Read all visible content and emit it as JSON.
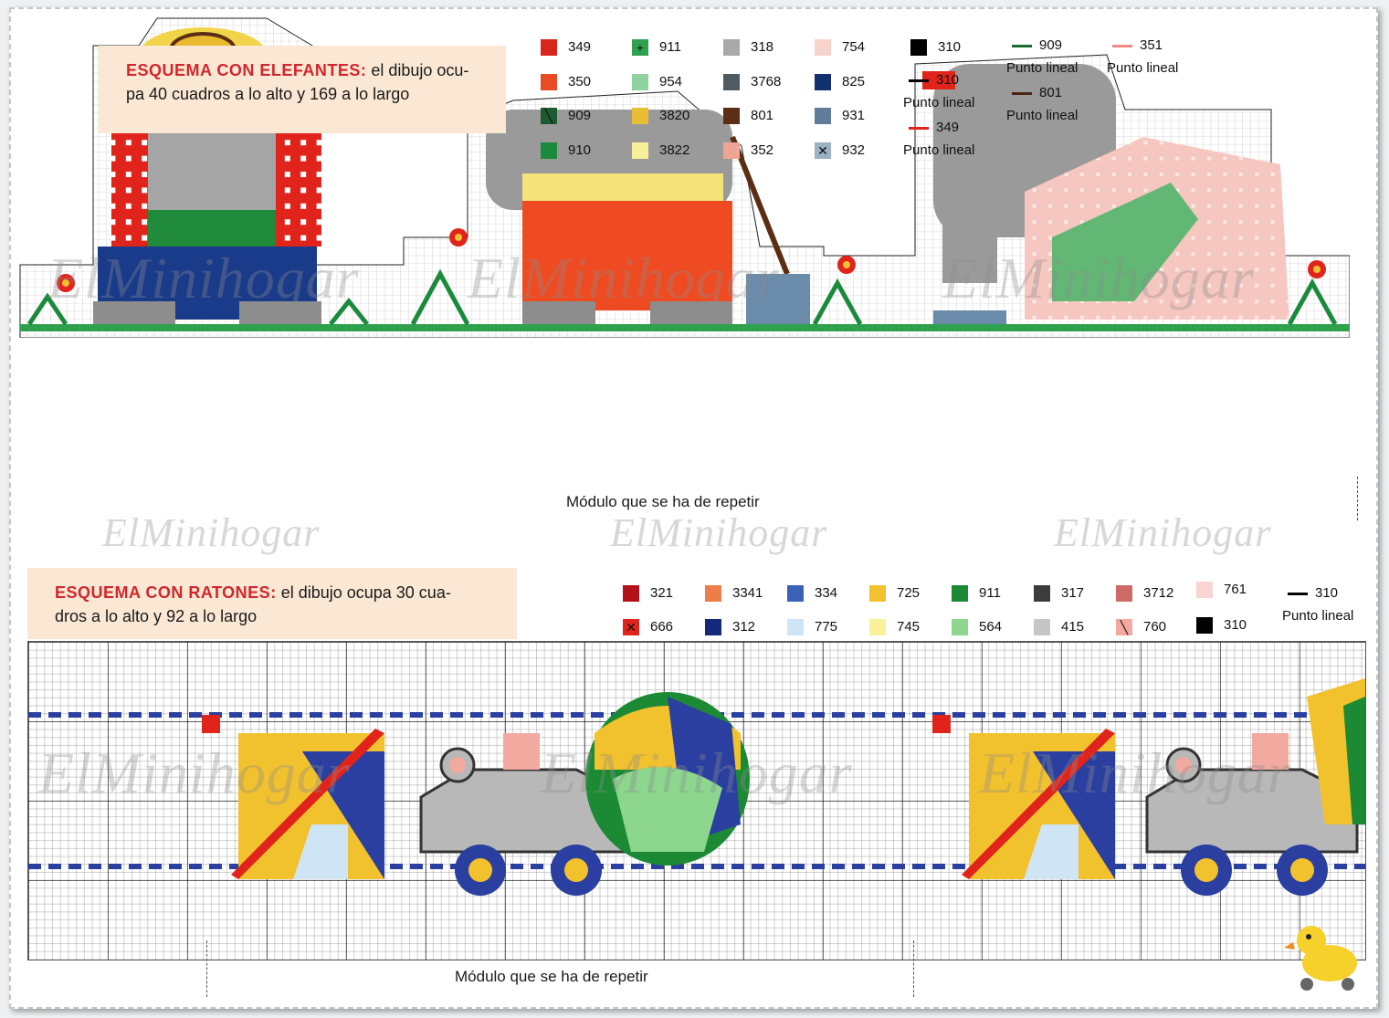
{
  "elephants": {
    "title_highlight": "ESQUEMA CON ELEFANTES:",
    "title_line1_rest": " el dibujo ocu-",
    "title_line2": "pa 40 cuadros a lo alto y 169 a lo largo",
    "legend": [
      {
        "code": "349",
        "color": "#d9261c"
      },
      {
        "code": "350",
        "color": "#e94b25"
      },
      {
        "code": "909",
        "color": "#1c5a2f",
        "symbol": "╲"
      },
      {
        "code": "910",
        "color": "#1b8a3c"
      },
      {
        "code": "911",
        "color": "#2fa14e",
        "symbol": "+"
      },
      {
        "code": "954",
        "color": "#8fd3a0"
      },
      {
        "code": "3820",
        "color": "#e9be36"
      },
      {
        "code": "3822",
        "color": "#f8ee9c"
      },
      {
        "code": "318",
        "color": "#a9a9a9"
      },
      {
        "code": "3768",
        "color": "#4e5b61"
      },
      {
        "code": "801",
        "color": "#5a2d14"
      },
      {
        "code": "352",
        "color": "#efa594"
      },
      {
        "code": "754",
        "color": "#f7d3cc"
      },
      {
        "code": "825",
        "color": "#12306f"
      },
      {
        "code": "931",
        "color": "#5f7d9a"
      },
      {
        "code": "932",
        "color": "#9bb1c4",
        "symbol": "✕"
      },
      {
        "code": "310",
        "color": "#000000"
      }
    ],
    "line_legend": [
      {
        "code": "310",
        "color": "#000000",
        "note": "Punto lineal"
      },
      {
        "code": "349",
        "color": "#e0241c",
        "note": "Punto lineal"
      },
      {
        "code": "909",
        "color": "#1d6b33",
        "note": "Punto lineal"
      },
      {
        "code": "801",
        "color": "#4a2412",
        "note": "Punto lineal"
      },
      {
        "code": "351",
        "color": "#f08a84",
        "note": "Punto lineal"
      }
    ],
    "caption": "Módulo que se ha de repetir"
  },
  "mice": {
    "title_highlight": "ESQUEMA CON RATONES:",
    "title_line1_rest": " el dibujo ocupa 30 cua-",
    "title_line2": "dros a lo alto y 92 a lo largo",
    "legend": [
      {
        "code": "321",
        "color": "#b3121b"
      },
      {
        "code": "666",
        "color": "#e0241c",
        "symbol": "✕"
      },
      {
        "code": "3341",
        "color": "#ef7d4b"
      },
      {
        "code": "312",
        "color": "#14297a"
      },
      {
        "code": "334",
        "color": "#3a63b8"
      },
      {
        "code": "775",
        "color": "#cfe5f6"
      },
      {
        "code": "725",
        "color": "#f2c12e"
      },
      {
        "code": "745",
        "color": "#fbf09a"
      },
      {
        "code": "911",
        "color": "#1c8a34"
      },
      {
        "code": "564",
        "color": "#8dd68e"
      },
      {
        "code": "317",
        "color": "#3c3c3c"
      },
      {
        "code": "415",
        "color": "#c6c6c6"
      },
      {
        "code": "3712",
        "color": "#cf6b66"
      },
      {
        "code": "760",
        "color": "#f2a9a0",
        "symbol": "╲"
      },
      {
        "code": "761",
        "color": "#f8d5d2"
      },
      {
        "code": "310",
        "color": "#000000"
      }
    ],
    "line_legend": [
      {
        "code": "310",
        "color": "#000000",
        "note": "Punto lineal"
      }
    ],
    "caption": "Módulo que se ha de repetir"
  },
  "watermark": "ElMinihogar"
}
